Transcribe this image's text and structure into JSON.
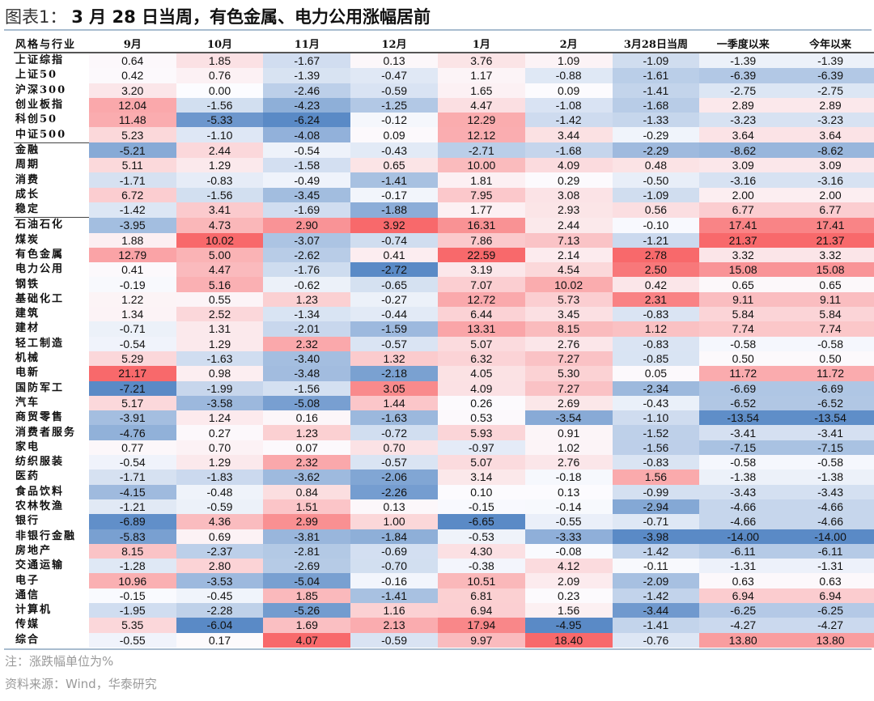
{
  "figure": {
    "prefix": "图表1：",
    "title": "3 月 28 日当周，有色金属、电力公用涨幅居前"
  },
  "notes": {
    "unit_note": "注：涨跌幅单位为%",
    "source": "资料来源：Wind，华泰研究"
  },
  "colors": {
    "positive_max": "#f8696b",
    "neutral": "#fcfcff",
    "negative_max": "#5a8ac6"
  },
  "chart_data": {
    "type": "heatmap",
    "title": "3月28日当周，有色金属、电力公用涨幅居前",
    "row_header": "风格与行业",
    "columns": [
      "9月",
      "10月",
      "11月",
      "12月",
      "1月",
      "2月",
      "3月28日当周",
      "一季度以来",
      "今年以来"
    ],
    "unit": "%",
    "rows": [
      {
        "name": "上证综指",
        "values": [
          0.64,
          1.85,
          -1.67,
          0.13,
          3.76,
          1.09,
          -1.09,
          -1.39,
          -1.39
        ]
      },
      {
        "name": "上证50",
        "values": [
          0.42,
          0.76,
          -1.39,
          -0.47,
          1.17,
          -0.88,
          -1.61,
          -6.39,
          -6.39
        ]
      },
      {
        "name": "沪深300",
        "values": [
          3.2,
          0.0,
          -2.46,
          -0.59,
          1.65,
          0.09,
          -1.41,
          -2.75,
          -2.75
        ]
      },
      {
        "name": "创业板指",
        "values": [
          12.04,
          -1.56,
          -4.23,
          -1.25,
          4.47,
          -1.08,
          -1.68,
          2.89,
          2.89
        ]
      },
      {
        "name": "科创50",
        "values": [
          11.48,
          -5.33,
          -6.24,
          -0.12,
          12.29,
          -1.42,
          -1.33,
          -3.23,
          -3.23
        ]
      },
      {
        "name": "中证500",
        "values": [
          5.23,
          -1.1,
          -4.08,
          0.09,
          12.12,
          3.44,
          -0.29,
          3.64,
          3.64
        ],
        "separator": true
      },
      {
        "name": "金融",
        "values": [
          -5.21,
          2.44,
          -0.54,
          -0.43,
          -2.71,
          -1.68,
          -2.29,
          -8.62,
          -8.62
        ]
      },
      {
        "name": "周期",
        "values": [
          5.11,
          1.29,
          -1.58,
          0.65,
          10.0,
          4.09,
          0.48,
          3.09,
          3.09
        ]
      },
      {
        "name": "消费",
        "values": [
          -1.71,
          -0.83,
          -0.49,
          -1.41,
          1.81,
          0.29,
          -0.5,
          -3.16,
          -3.16
        ]
      },
      {
        "name": "成长",
        "values": [
          6.72,
          -1.56,
          -3.45,
          -0.17,
          7.95,
          3.08,
          -1.09,
          2.0,
          2.0
        ]
      },
      {
        "name": "稳定",
        "values": [
          -1.42,
          3.41,
          -1.69,
          -1.88,
          1.77,
          2.93,
          0.56,
          6.77,
          6.77
        ],
        "separator": true
      },
      {
        "name": "石油石化",
        "values": [
          -3.95,
          4.73,
          2.9,
          3.92,
          16.31,
          2.44,
          -0.1,
          17.41,
          17.41
        ]
      },
      {
        "name": "煤炭",
        "values": [
          1.88,
          10.02,
          -3.07,
          -0.74,
          7.86,
          7.13,
          -1.21,
          21.37,
          21.37
        ]
      },
      {
        "name": "有色金属",
        "values": [
          12.79,
          5.0,
          -2.62,
          0.41,
          22.59,
          2.14,
          2.78,
          3.32,
          3.32
        ]
      },
      {
        "name": "电力公用",
        "values": [
          0.41,
          4.47,
          -1.76,
          -2.72,
          3.19,
          4.54,
          2.5,
          15.08,
          15.08
        ]
      },
      {
        "name": "钢铁",
        "values": [
          -0.19,
          5.16,
          -0.62,
          -0.65,
          7.07,
          10.02,
          0.42,
          0.65,
          0.65
        ]
      },
      {
        "name": "基础化工",
        "values": [
          1.22,
          0.55,
          1.23,
          -0.27,
          12.72,
          5.73,
          2.31,
          9.11,
          9.11
        ]
      },
      {
        "name": "建筑",
        "values": [
          1.34,
          2.52,
          -1.34,
          -0.44,
          6.44,
          3.45,
          -0.83,
          5.84,
          5.84
        ]
      },
      {
        "name": "建材",
        "values": [
          -0.71,
          1.31,
          -2.01,
          -1.59,
          13.31,
          8.15,
          1.12,
          7.74,
          7.74
        ]
      },
      {
        "name": "轻工制造",
        "values": [
          -0.54,
          1.29,
          2.32,
          -0.57,
          5.07,
          2.76,
          -0.83,
          -0.58,
          -0.58
        ]
      },
      {
        "name": "机械",
        "values": [
          5.29,
          -1.63,
          -3.4,
          1.32,
          6.32,
          7.27,
          -0.85,
          0.5,
          0.5
        ]
      },
      {
        "name": "电新",
        "values": [
          21.17,
          0.98,
          -3.48,
          -2.18,
          4.05,
          5.3,
          0.05,
          11.72,
          11.72
        ]
      },
      {
        "name": "国防军工",
        "values": [
          -7.21,
          -1.99,
          -1.56,
          3.05,
          4.09,
          7.27,
          -2.34,
          -6.69,
          -6.69
        ]
      },
      {
        "name": "汽车",
        "values": [
          5.17,
          -3.58,
          -5.08,
          1.44,
          0.26,
          2.69,
          -0.43,
          -6.52,
          -6.52
        ]
      },
      {
        "name": "商贸零售",
        "values": [
          -3.91,
          1.24,
          0.16,
          -1.63,
          0.53,
          -3.54,
          -1.1,
          -13.54,
          -13.54
        ]
      },
      {
        "name": "消费者服务",
        "values": [
          -4.76,
          0.27,
          1.23,
          -0.72,
          5.93,
          0.91,
          -1.52,
          -3.41,
          -3.41
        ]
      },
      {
        "name": "家电",
        "values": [
          0.77,
          0.7,
          0.07,
          0.7,
          -0.97,
          1.02,
          -1.56,
          -7.15,
          -7.15
        ]
      },
      {
        "name": "纺织服装",
        "values": [
          -0.54,
          1.29,
          2.32,
          -0.57,
          5.07,
          2.76,
          -0.83,
          -0.58,
          -0.58
        ]
      },
      {
        "name": "医药",
        "values": [
          -1.71,
          -1.83,
          -3.62,
          -2.06,
          3.14,
          -0.18,
          1.56,
          -1.38,
          -1.38
        ]
      },
      {
        "name": "食品饮料",
        "values": [
          -4.15,
          -0.48,
          0.84,
          -2.26,
          0.1,
          0.13,
          -0.99,
          -3.43,
          -3.43
        ]
      },
      {
        "name": "农林牧渔",
        "values": [
          -1.21,
          -0.59,
          1.51,
          0.13,
          -0.15,
          -0.14,
          -2.94,
          -4.66,
          -4.66
        ]
      },
      {
        "name": "银行",
        "values": [
          -6.89,
          4.36,
          2.99,
          1.0,
          -6.65,
          -0.55,
          -0.71,
          -4.66,
          -4.66
        ]
      },
      {
        "name": "非银行金融",
        "values": [
          -5.83,
          0.69,
          -3.81,
          -1.84,
          -0.53,
          -3.33,
          -3.98,
          -14.0,
          -14.0
        ]
      },
      {
        "name": "房地产",
        "values": [
          8.15,
          -2.37,
          -2.81,
          -0.69,
          4.3,
          -0.08,
          -1.42,
          -6.11,
          -6.11
        ]
      },
      {
        "name": "交通运输",
        "values": [
          -1.28,
          2.8,
          -2.69,
          -0.7,
          -0.38,
          4.12,
          -0.11,
          -1.31,
          -1.31
        ]
      },
      {
        "name": "电子",
        "values": [
          10.96,
          -3.53,
          -5.04,
          -0.16,
          10.51,
          2.09,
          -2.09,
          0.63,
          0.63
        ]
      },
      {
        "name": "通信",
        "values": [
          -0.15,
          -0.45,
          1.85,
          -1.41,
          6.81,
          0.23,
          -1.42,
          6.94,
          6.94
        ]
      },
      {
        "name": "计算机",
        "values": [
          -1.95,
          -2.28,
          -5.26,
          1.16,
          6.94,
          1.56,
          -3.44,
          -6.25,
          -6.25
        ]
      },
      {
        "name": "传媒",
        "values": [
          5.35,
          -6.04,
          1.69,
          2.13,
          17.94,
          -4.95,
          -1.41,
          -4.27,
          -4.27
        ]
      },
      {
        "name": "综合",
        "values": [
          -0.55,
          0.17,
          4.07,
          -0.59,
          9.97,
          18.4,
          -0.76,
          13.8,
          13.8
        ]
      }
    ]
  }
}
